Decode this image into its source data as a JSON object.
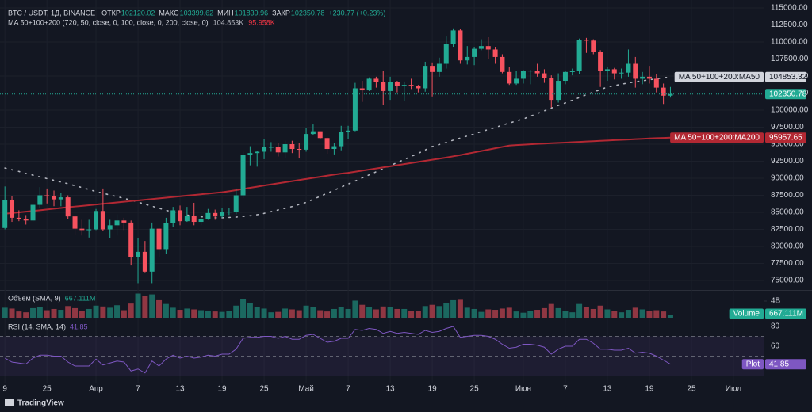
{
  "chart_data": {
    "type": "candlestick",
    "title": "BTC / USDT, 1Д, BINANCE",
    "ohlc_labels": [
      {
        "label": "ОТКР",
        "value": "102120.02"
      },
      {
        "label": "МАКС",
        "value": "103399.62"
      },
      {
        "label": "МИН",
        "value": "101839.96"
      },
      {
        "label": "ЗАКР",
        "value": "102350.78"
      }
    ],
    "change": "+230.77 (+0.23%)",
    "up_color": "#22ab94",
    "down_color": "#f7525f",
    "open": [
      82700,
      86800,
      84200,
      84000,
      83800,
      86100,
      87500,
      87400,
      86900,
      87200,
      84400,
      82600,
      82400,
      82500,
      85200,
      82500,
      83100,
      83800,
      83500,
      78400,
      79200,
      76300,
      82600,
      79600,
      83400,
      85300,
      83700,
      84500,
      83600,
      84000,
      84900,
      84400,
      85100,
      85100,
      87500,
      93400,
      93700,
      93900,
      94600,
      94600,
      93800,
      95000,
      94300,
      94200,
      96500,
      96900,
      95900,
      94300,
      94700,
      96800,
      97000,
      103200,
      102900,
      104600,
      104100,
      102800,
      104100,
      103500,
      103700,
      103500,
      103200,
      106500,
      105600,
      106800,
      109700,
      111700,
      107300,
      107800,
      109000,
      109400,
      108900,
      107800,
      105600,
      103900,
      104600,
      105700,
      105800,
      105400,
      104700,
      101500,
      104300,
      105600,
      105700,
      110300,
      110200,
      108600,
      105700,
      106000,
      105400,
      105500,
      106800,
      104600,
      104900,
      104600,
      103300,
      102120.02
    ],
    "high": [
      88800,
      87400,
      85300,
      84600,
      86300,
      88700,
      88500,
      88200,
      87800,
      87500,
      84600,
      83900,
      83900,
      85500,
      88500,
      83900,
      84700,
      84200,
      83800,
      81200,
      80800,
      83500,
      82700,
      84200,
      85800,
      86000,
      85800,
      86400,
      84800,
      85500,
      85400,
      85700,
      85600,
      88500,
      93900,
      94700,
      94000,
      95800,
      95300,
      95200,
      95500,
      95500,
      95200,
      97400,
      97900,
      96900,
      96000,
      95200,
      97700,
      97700,
      104000,
      104300,
      104800,
      104900,
      105800,
      104900,
      104300,
      104200,
      104600,
      103700,
      107100,
      107000,
      107700,
      110800,
      112000,
      111900,
      109400,
      109300,
      110400,
      110700,
      109300,
      108200,
      106300,
      105800,
      105900,
      105900,
      106800,
      106000,
      105100,
      105400,
      105700,
      106100,
      110500,
      110600,
      110400,
      108800,
      106300,
      106200,
      106100,
      108900,
      107800,
      105600,
      106500,
      105300,
      103900,
      103399.62
    ],
    "low": [
      82500,
      83600,
      83700,
      83200,
      83600,
      85600,
      86300,
      85900,
      85900,
      84000,
      81700,
      81600,
      81300,
      82400,
      82300,
      81200,
      81600,
      82400,
      77200,
      74600,
      76200,
      74600,
      78500,
      78900,
      82800,
      83100,
      83600,
      83100,
      83100,
      83900,
      83900,
      84200,
      84600,
      84700,
      87100,
      91900,
      91700,
      92800,
      93900,
      93200,
      92900,
      93700,
      92900,
      93900,
      96300,
      95700,
      93600,
      93500,
      94100,
      95800,
      96900,
      101200,
      102800,
      103300,
      100800,
      101500,
      102600,
      101400,
      103100,
      102600,
      102700,
      102000,
      104900,
      106100,
      109300,
      106800,
      106700,
      106600,
      108800,
      107500,
      106800,
      105400,
      103700,
      103700,
      103900,
      103800,
      104900,
      104000,
      100400,
      101100,
      103800,
      105100,
      105300,
      108400,
      108200,
      103400,
      104300,
      104500,
      104600,
      104900,
      103300,
      103800,
      103900,
      102600,
      100900,
      101839.96
    ],
    "close": [
      86800,
      84200,
      84000,
      83800,
      86100,
      87500,
      87400,
      86900,
      87200,
      84400,
      82600,
      82400,
      82500,
      85200,
      82500,
      83100,
      83800,
      83500,
      78400,
      79200,
      76300,
      82600,
      79600,
      83400,
      85300,
      83700,
      84500,
      83600,
      84000,
      84900,
      84400,
      85100,
      85100,
      87500,
      93400,
      93700,
      93900,
      94600,
      94600,
      93800,
      95000,
      94300,
      94200,
      96500,
      96900,
      95900,
      94300,
      94700,
      96800,
      97000,
      103200,
      102900,
      104600,
      104100,
      102800,
      104100,
      103500,
      103700,
      103500,
      103200,
      106500,
      105600,
      106800,
      109700,
      111700,
      107300,
      107800,
      109000,
      109400,
      108900,
      107800,
      105600,
      103900,
      104600,
      105700,
      105800,
      105400,
      104700,
      101500,
      104300,
      105600,
      105700,
      110300,
      110200,
      108600,
      105700,
      106000,
      105400,
      105500,
      106800,
      104600,
      104900,
      104600,
      103300,
      102120.02,
      102350.78
    ],
    "last_price_label": "102350.78",
    "ylim": [
      74000,
      116000
    ],
    "yticks": [
      {
        "value": 75000,
        "label": "75000.00"
      },
      {
        "value": 77500,
        "label": "77500.00"
      },
      {
        "value": 80000,
        "label": "80000.00"
      },
      {
        "value": 82500,
        "label": "82500.00"
      },
      {
        "value": 85000,
        "label": "85000.00"
      },
      {
        "value": 87500,
        "label": "87500.00"
      },
      {
        "value": 90000,
        "label": "90000.00"
      },
      {
        "value": 92500,
        "label": "92500.00"
      },
      {
        "value": 95000,
        "label": "95000.00"
      },
      {
        "value": 97500,
        "label": "97500.00"
      },
      {
        "value": 100000,
        "label": "100000.00"
      },
      {
        "value": 102500,
        "label": "102500.00"
      },
      {
        "value": 105000,
        "label": "105000.00"
      },
      {
        "value": 107500,
        "label": "107500.00"
      },
      {
        "value": 110000,
        "label": "110000.00"
      },
      {
        "value": 112500,
        "label": "112500.00"
      },
      {
        "value": 115000,
        "label": "115000.00"
      }
    ],
    "xlim": [
      -0.7,
      107.4
    ],
    "xticks": [
      {
        "value": 0,
        "label": "9"
      },
      {
        "value": 6,
        "label": "25"
      },
      {
        "value": 13,
        "label": "Апр"
      },
      {
        "value": 19,
        "label": "7"
      },
      {
        "value": 25,
        "label": "13"
      },
      {
        "value": 31,
        "label": "19"
      },
      {
        "value": 37,
        "label": "25"
      },
      {
        "value": 43,
        "label": "Май"
      },
      {
        "value": 49,
        "label": "7"
      },
      {
        "value": 55,
        "label": "13"
      },
      {
        "value": 61,
        "label": "19"
      },
      {
        "value": 67,
        "label": "25"
      },
      {
        "value": 74,
        "label": "Июн"
      },
      {
        "value": 80,
        "label": "7"
      },
      {
        "value": 86,
        "label": "13"
      },
      {
        "value": 92,
        "label": "19"
      },
      {
        "value": 98,
        "label": "25"
      },
      {
        "value": 104,
        "label": "Июл"
      }
    ],
    "grid": true,
    "indicator": {
      "name": "MA 50+100+200 (720, 50, close, 0, 100, close, 0, 200, close, 0)",
      "series": [
        {
          "name": "MA 50+100+200:MA50",
          "color": "#b2b5be",
          "style": "dotted",
          "legend_value": "104.853K",
          "tag_value": "104853.32",
          "values": [
            91500,
            91250,
            91000,
            90700,
            90450,
            90200,
            89950,
            89700,
            89450,
            89200,
            88900,
            88650,
            88350,
            88050,
            87800,
            87550,
            87300,
            87050,
            86800,
            86500,
            86200,
            85900,
            85600,
            85300,
            85050,
            84800,
            84600,
            84450,
            84350,
            84250,
            84200,
            84200,
            84250,
            84300,
            84400,
            84500,
            84650,
            84850,
            85100,
            85350,
            85600,
            85850,
            86150,
            86450,
            86900,
            87350,
            87800,
            88250,
            88700,
            89150,
            89600,
            90050,
            90500,
            90950,
            91400,
            91850,
            92300,
            92750,
            93200,
            93650,
            94150,
            94650,
            94950,
            95250,
            95600,
            95900,
            96200,
            96500,
            96850,
            97150,
            97450,
            97800,
            98100,
            98400,
            98700,
            99100,
            99500,
            99900,
            100300,
            100700,
            101050,
            101450,
            101850,
            102250,
            102650,
            103000,
            103400,
            103600,
            103800,
            104000,
            104150,
            104300,
            104450,
            104600,
            104750,
            104853.32
          ]
        },
        {
          "name": "MA 50+100+200:MA200",
          "color": "#b22833",
          "style": "solid",
          "legend_value": "95.958K",
          "tag_value": "95957.65",
          "values": [
            84800,
            84900,
            85000,
            85100,
            85200,
            85310,
            85420,
            85530,
            85640,
            85750,
            85850,
            85950,
            86050,
            86150,
            86250,
            86350,
            86450,
            86550,
            86650,
            86750,
            86850,
            86950,
            87050,
            87150,
            87250,
            87350,
            87450,
            87550,
            87650,
            87750,
            87850,
            87950,
            88100,
            88260,
            88430,
            88600,
            88770,
            88940,
            89100,
            89260,
            89420,
            89580,
            89740,
            89900,
            90060,
            90220,
            90380,
            90540,
            90680,
            90800,
            90960,
            91120,
            91280,
            91440,
            91600,
            91760,
            91920,
            92080,
            92240,
            92400,
            92560,
            92720,
            92880,
            93040,
            93220,
            93400,
            93600,
            93800,
            94000,
            94200,
            94400,
            94600,
            94800,
            94870,
            94930,
            94990,
            95040,
            95090,
            95140,
            95190,
            95240,
            95290,
            95340,
            95390,
            95440,
            95490,
            95540,
            95590,
            95640,
            95690,
            95740,
            95790,
            95840,
            95880,
            95920,
            95957.65
          ]
        }
      ]
    },
    "volume": {
      "title": "Объём (SMA, 9)",
      "legend_value": "667.111M",
      "tag_name": "Volume",
      "ylim": [
        0,
        6470
      ],
      "yticks": [
        {
          "value": 4000,
          "label": "4B"
        }
      ],
      "values": [
        2400,
        2200,
        1500,
        1300,
        2300,
        2600,
        1800,
        2100,
        1900,
        2800,
        2300,
        1700,
        2100,
        2900,
        2700,
        2400,
        3000,
        1800,
        3400,
        5800,
        5300,
        5600,
        4200,
        3300,
        2400,
        1900,
        2200,
        2000,
        1800,
        1700,
        1500,
        1400,
        1600,
        2900,
        4500,
        3600,
        2600,
        2200,
        1300,
        1400,
        2200,
        2000,
        1800,
        2900,
        2600,
        1800,
        1500,
        2100,
        2600,
        2100,
        4100,
        3100,
        2600,
        2000,
        2700,
        2500,
        2100,
        2100,
        1600,
        1600,
        2800,
        3100,
        2800,
        3600,
        4200,
        4300,
        2400,
        2100,
        1400,
        2000,
        1900,
        2200,
        2400,
        1500,
        1200,
        1700,
        1900,
        2300,
        3300,
        2300,
        1600,
        1300,
        3300,
        2500,
        2100,
        2900,
        2000,
        1600,
        1300,
        1900,
        2400,
        2000,
        1700,
        1800,
        1500,
        667.111
      ]
    },
    "rsi": {
      "title": "RSI (14, SMA, 14)",
      "legend_value": "41.85",
      "tag_name": "Plot",
      "color": "#7e57c2",
      "ylim": [
        24,
        85.6
      ],
      "yticks": [
        80,
        60
      ],
      "levels": [
        70,
        50,
        30
      ],
      "values": [
        48,
        44,
        43,
        42,
        48,
        51,
        51,
        50,
        50,
        44,
        40,
        40,
        40,
        47,
        41,
        43,
        45,
        44,
        35,
        37,
        33,
        45,
        40,
        47,
        51,
        48,
        50,
        48,
        49,
        51,
        50,
        52,
        52,
        57,
        68,
        69,
        69,
        70,
        70,
        68,
        70,
        67,
        67,
        71,
        72,
        68,
        64,
        65,
        68,
        68,
        77,
        76,
        78,
        77,
        73,
        75,
        73,
        74,
        73,
        72,
        76,
        74,
        75,
        78,
        80,
        69,
        70,
        71,
        71,
        70,
        67,
        62,
        58,
        59,
        62,
        62,
        61,
        59,
        52,
        57,
        60,
        60,
        67,
        67,
        63,
        57,
        57,
        56,
        56,
        58,
        53,
        54,
        53,
        50,
        46,
        41.85
      ]
    }
  },
  "footer": "TradingView"
}
